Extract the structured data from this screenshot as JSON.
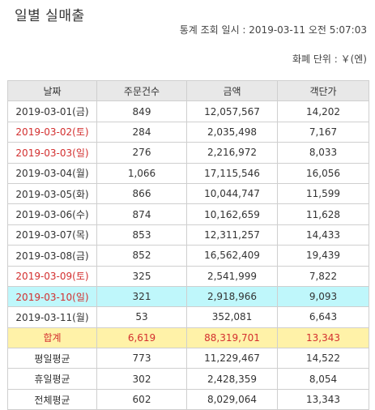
{
  "page": {
    "title": "일별 실매출",
    "query_time": "통계 조회 일시 : 2019-03-11 오전 5:07:03",
    "currency_unit": "화폐 단위 : ￥(엔)"
  },
  "table": {
    "headers": [
      "날짜",
      "주문건수",
      "금액",
      "객단가"
    ],
    "rows": [
      {
        "date": "2019-03-01(금)",
        "orders": "849",
        "amount": "12,057,567",
        "avg": "14,202",
        "holiday": false,
        "highlight": false
      },
      {
        "date": "2019-03-02(토)",
        "orders": "284",
        "amount": "2,035,498",
        "avg": "7,167",
        "holiday": true,
        "highlight": false
      },
      {
        "date": "2019-03-03(일)",
        "orders": "276",
        "amount": "2,216,972",
        "avg": "8,033",
        "holiday": true,
        "highlight": false
      },
      {
        "date": "2019-03-04(월)",
        "orders": "1,066",
        "amount": "17,115,546",
        "avg": "16,056",
        "holiday": false,
        "highlight": false
      },
      {
        "date": "2019-03-05(화)",
        "orders": "866",
        "amount": "10,044,747",
        "avg": "11,599",
        "holiday": false,
        "highlight": false
      },
      {
        "date": "2019-03-06(수)",
        "orders": "874",
        "amount": "10,162,659",
        "avg": "11,628",
        "holiday": false,
        "highlight": false
      },
      {
        "date": "2019-03-07(목)",
        "orders": "853",
        "amount": "12,311,257",
        "avg": "14,433",
        "holiday": false,
        "highlight": false
      },
      {
        "date": "2019-03-08(금)",
        "orders": "852",
        "amount": "16,562,409",
        "avg": "19,439",
        "holiday": false,
        "highlight": false
      },
      {
        "date": "2019-03-09(토)",
        "orders": "325",
        "amount": "2,541,999",
        "avg": "7,822",
        "holiday": true,
        "highlight": false
      },
      {
        "date": "2019-03-10(일)",
        "orders": "321",
        "amount": "2,918,966",
        "avg": "9,093",
        "holiday": true,
        "highlight": true
      },
      {
        "date": "2019-03-11(월)",
        "orders": "53",
        "amount": "352,081",
        "avg": "6,643",
        "holiday": false,
        "highlight": false
      }
    ],
    "total": {
      "label": "합계",
      "orders": "6,619",
      "amount": "88,319,701",
      "avg": "13,343"
    },
    "averages": [
      {
        "label": "평일평균",
        "orders": "773",
        "amount": "11,229,467",
        "avg": "14,522"
      },
      {
        "label": "휴일평균",
        "orders": "302",
        "amount": "2,428,359",
        "avg": "8,054"
      },
      {
        "label": "전체평균",
        "orders": "602",
        "amount": "8,029,064",
        "avg": "13,343"
      }
    ]
  },
  "colors": {
    "holiday_text": "#d32f2f",
    "highlight_row": "#bff7fb",
    "total_row": "#fff2a8",
    "header_bg": "#e8e8e8"
  }
}
